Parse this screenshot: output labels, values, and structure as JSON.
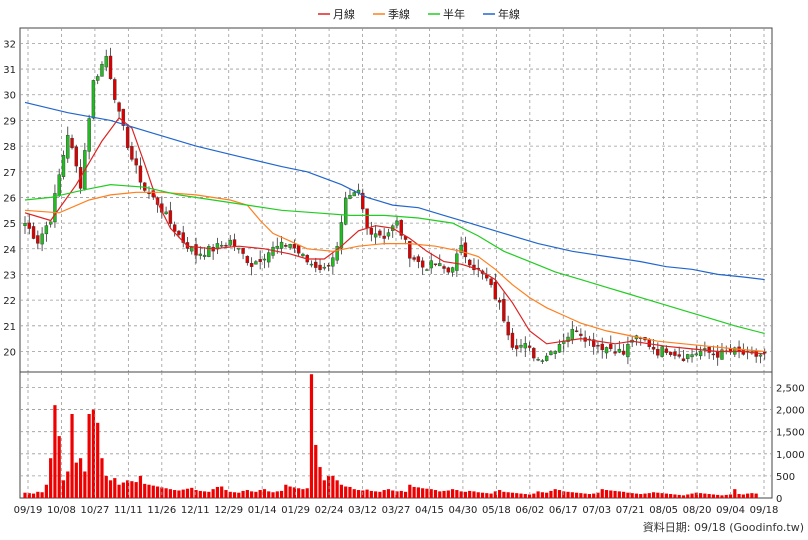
{
  "legend": [
    {
      "label": "月線",
      "color": "#dd2222"
    },
    {
      "label": "季線",
      "color": "#ff7f1e"
    },
    {
      "label": "半年",
      "color": "#22cc22"
    },
    {
      "label": "年線",
      "color": "#2266cc"
    }
  ],
  "footer": "資料日期: 09/18  (Goodinfo.tw)",
  "colors": {
    "up_candle": "#22bb22",
    "down_candle": "#dd0000",
    "volume": "#ee0000",
    "grid": "#9a9a9a"
  },
  "chart_data": [
    {
      "type": "candlestick",
      "price_axis": {
        "ylim": [
          19.2,
          32.6
        ],
        "ticks": [
          20,
          21,
          22,
          23,
          24,
          25,
          26,
          27,
          28,
          29,
          30,
          31,
          32
        ]
      },
      "x_ticks": [
        "09/19",
        "10/08",
        "10/27",
        "11/11",
        "11/26",
        "12/11",
        "12/29",
        "01/14",
        "01/29",
        "02/24",
        "03/12",
        "03/27",
        "04/15",
        "04/30",
        "05/18",
        "06/02",
        "06/17",
        "07/03",
        "07/21",
        "08/05",
        "08/20",
        "09/04",
        "09/18"
      ],
      "close_anchors": [
        [
          0,
          25.0
        ],
        [
          3,
          24.3
        ],
        [
          6,
          25.2
        ],
        [
          10,
          28.5
        ],
        [
          13,
          26.5
        ],
        [
          16,
          30.5
        ],
        [
          19,
          31.5
        ],
        [
          22,
          29.2
        ],
        [
          25,
          27.5
        ],
        [
          28,
          26.3
        ],
        [
          31,
          25.8
        ],
        [
          34,
          25.0
        ],
        [
          37,
          24.3
        ],
        [
          40,
          23.8
        ],
        [
          44,
          24.0
        ],
        [
          48,
          24.3
        ],
        [
          53,
          23.4
        ],
        [
          58,
          24.0
        ],
        [
          62,
          24.2
        ],
        [
          66,
          23.5
        ],
        [
          70,
          23.2
        ],
        [
          73,
          24.0
        ],
        [
          75,
          25.8
        ],
        [
          78,
          26.2
        ],
        [
          80,
          24.8
        ],
        [
          84,
          24.5
        ],
        [
          87,
          25.0
        ],
        [
          90,
          23.8
        ],
        [
          93,
          23.3
        ],
        [
          96,
          23.4
        ],
        [
          99,
          23.1
        ],
        [
          102,
          24.0
        ],
        [
          105,
          23.3
        ],
        [
          108,
          22.8
        ],
        [
          111,
          21.8
        ],
        [
          114,
          20.3
        ],
        [
          117,
          20.2
        ],
        [
          120,
          19.7
        ],
        [
          123,
          20.0
        ],
        [
          126,
          20.5
        ],
        [
          129,
          20.9
        ],
        [
          132,
          20.4
        ],
        [
          135,
          20.2
        ],
        [
          138,
          20.1
        ],
        [
          140,
          19.9
        ],
        [
          142,
          20.5
        ],
        [
          145,
          20.4
        ],
        [
          148,
          20.0
        ],
        [
          150,
          20.1
        ],
        [
          154,
          19.8
        ],
        [
          158,
          20.0
        ],
        [
          162,
          19.9
        ],
        [
          166,
          20.0
        ],
        [
          170,
          19.8
        ],
        [
          173,
          19.9
        ]
      ],
      "series": [
        {
          "name": "月線",
          "points": [
            [
              0,
              25.4
            ],
            [
              6,
              25.1
            ],
            [
              12,
              26.5
            ],
            [
              18,
              28.2
            ],
            [
              22,
              29.1
            ],
            [
              25,
              28.7
            ],
            [
              28,
              27.3
            ],
            [
              31,
              25.8
            ],
            [
              34,
              24.8
            ],
            [
              38,
              24.1
            ],
            [
              44,
              24.0
            ],
            [
              50,
              24.1
            ],
            [
              56,
              24.0
            ],
            [
              62,
              23.8
            ],
            [
              66,
              23.6
            ],
            [
              70,
              23.6
            ],
            [
              74,
              24.1
            ],
            [
              78,
              24.7
            ],
            [
              82,
              24.9
            ],
            [
              86,
              24.8
            ],
            [
              90,
              24.4
            ],
            [
              94,
              23.9
            ],
            [
              98,
              23.5
            ],
            [
              102,
              23.4
            ],
            [
              106,
              23.2
            ],
            [
              110,
              22.8
            ],
            [
              114,
              21.9
            ],
            [
              118,
              20.8
            ],
            [
              122,
              20.3
            ],
            [
              126,
              20.4
            ],
            [
              130,
              20.5
            ],
            [
              134,
              20.4
            ],
            [
              138,
              20.3
            ],
            [
              142,
              20.4
            ],
            [
              146,
              20.3
            ],
            [
              150,
              20.2
            ],
            [
              156,
              20.1
            ],
            [
              162,
              20.0
            ],
            [
              168,
              20.0
            ],
            [
              173,
              19.9
            ]
          ]
        },
        {
          "name": "季線",
          "points": [
            [
              0,
              25.5
            ],
            [
              8,
              25.4
            ],
            [
              15,
              25.9
            ],
            [
              20,
              26.1
            ],
            [
              26,
              26.2
            ],
            [
              32,
              26.2
            ],
            [
              40,
              26.1
            ],
            [
              48,
              25.9
            ],
            [
              52,
              25.7
            ],
            [
              55,
              25.1
            ],
            [
              58,
              24.6
            ],
            [
              62,
              24.3
            ],
            [
              66,
              24.0
            ],
            [
              72,
              23.9
            ],
            [
              78,
              24.1
            ],
            [
              84,
              24.2
            ],
            [
              90,
              24.2
            ],
            [
              96,
              24.1
            ],
            [
              102,
              23.9
            ],
            [
              106,
              23.7
            ],
            [
              110,
              23.2
            ],
            [
              114,
              22.6
            ],
            [
              118,
              22.1
            ],
            [
              122,
              21.7
            ],
            [
              126,
              21.4
            ],
            [
              130,
              21.1
            ],
            [
              136,
              20.8
            ],
            [
              142,
              20.6
            ],
            [
              148,
              20.4
            ],
            [
              154,
              20.3
            ],
            [
              160,
              20.2
            ],
            [
              166,
              20.1
            ],
            [
              173,
              20.0
            ]
          ]
        },
        {
          "name": "半年",
          "points": [
            [
              0,
              25.9
            ],
            [
              6,
              26.0
            ],
            [
              14,
              26.3
            ],
            [
              20,
              26.5
            ],
            [
              28,
              26.4
            ],
            [
              36,
              26.1
            ],
            [
              44,
              25.9
            ],
            [
              52,
              25.7
            ],
            [
              60,
              25.5
            ],
            [
              68,
              25.4
            ],
            [
              76,
              25.3
            ],
            [
              84,
              25.3
            ],
            [
              92,
              25.2
            ],
            [
              100,
              25.0
            ],
            [
              106,
              24.5
            ],
            [
              112,
              23.9
            ],
            [
              118,
              23.5
            ],
            [
              124,
              23.1
            ],
            [
              130,
              22.8
            ],
            [
              136,
              22.5
            ],
            [
              142,
              22.2
            ],
            [
              148,
              21.9
            ],
            [
              154,
              21.6
            ],
            [
              160,
              21.3
            ],
            [
              166,
              21.0
            ],
            [
              173,
              20.7
            ]
          ]
        },
        {
          "name": "年線",
          "points": [
            [
              0,
              29.7
            ],
            [
              10,
              29.3
            ],
            [
              20,
              29.0
            ],
            [
              30,
              28.5
            ],
            [
              40,
              28.0
            ],
            [
              50,
              27.6
            ],
            [
              60,
              27.2
            ],
            [
              66,
              27.0
            ],
            [
              74,
              26.5
            ],
            [
              80,
              26.0
            ],
            [
              86,
              25.7
            ],
            [
              92,
              25.6
            ],
            [
              98,
              25.3
            ],
            [
              104,
              25.0
            ],
            [
              112,
              24.6
            ],
            [
              120,
              24.2
            ],
            [
              128,
              23.9
            ],
            [
              136,
              23.7
            ],
            [
              144,
              23.5
            ],
            [
              150,
              23.3
            ],
            [
              156,
              23.2
            ],
            [
              162,
              23.0
            ],
            [
              168,
              22.9
            ],
            [
              173,
              22.8
            ]
          ]
        }
      ]
    },
    {
      "type": "bar",
      "title": "",
      "volume_axis": {
        "ylim": [
          0,
          2850
        ],
        "ticks": [
          0,
          500,
          1000,
          1500,
          2000,
          2500
        ]
      },
      "values": [
        120,
        110,
        100,
        140,
        130,
        300,
        900,
        2100,
        1400,
        400,
        600,
        1900,
        800,
        900,
        600,
        1900,
        2000,
        1700,
        900,
        500,
        400,
        450,
        300,
        350,
        400,
        380,
        360,
        500,
        320,
        300,
        280,
        260,
        240,
        220,
        200,
        180,
        170,
        190,
        210,
        230,
        180,
        160,
        150,
        140,
        200,
        250,
        260,
        180,
        140,
        130,
        120,
        160,
        180,
        150,
        140,
        180,
        200,
        150,
        130,
        150,
        160,
        300,
        260,
        240,
        220,
        200,
        220,
        2800,
        1200,
        700,
        400,
        500,
        500,
        400,
        300,
        260,
        250,
        200,
        180,
        170,
        190,
        160,
        150,
        140,
        180,
        200,
        170,
        150,
        160,
        140,
        300,
        250,
        240,
        220,
        210,
        200,
        180,
        150,
        160,
        170,
        200,
        180,
        150,
        140,
        160,
        150,
        130,
        120,
        110,
        100,
        150,
        180,
        140,
        130,
        120,
        110,
        100,
        90,
        80,
        100,
        150,
        130,
        120,
        160,
        200,
        180,
        150,
        140,
        130,
        120,
        110,
        100,
        90,
        100,
        120,
        200,
        180,
        170,
        160,
        150,
        140,
        120,
        110,
        100,
        90,
        100,
        110,
        130,
        120,
        110,
        100,
        90,
        80,
        70,
        60,
        80,
        100,
        120,
        110,
        100,
        90,
        80,
        70,
        60,
        70,
        80,
        200,
        90,
        80,
        100,
        110,
        100
      ]
    }
  ]
}
